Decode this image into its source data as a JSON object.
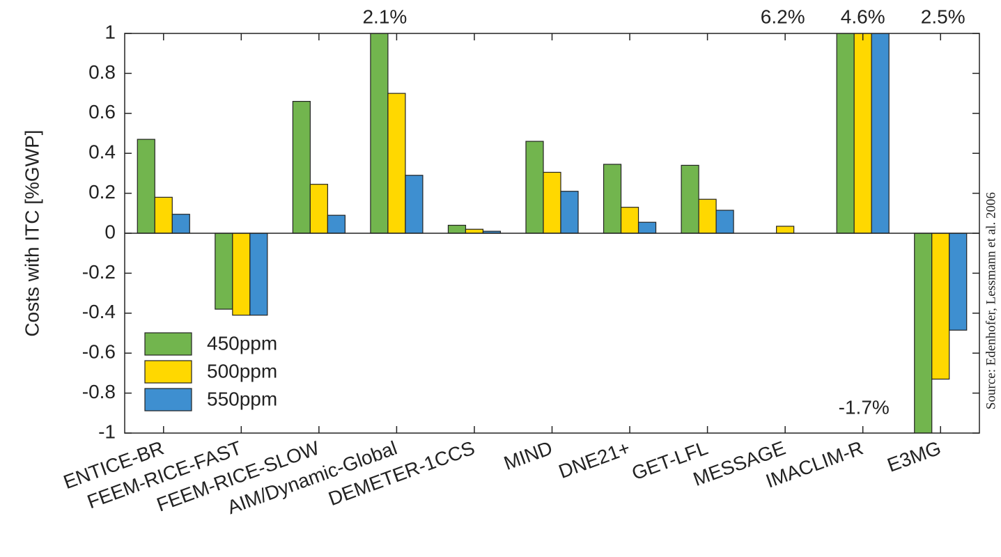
{
  "chart_data": {
    "type": "bar",
    "ylabel": "Costs with ITC [%GWP]",
    "source": "Source: Edenhofer, Lessmann et al. 2006",
    "categories": [
      "ENTICE-BR",
      "FEEM-RICE-FAST",
      "FEEM-RICE-SLOW",
      "AIM/Dynamic-Global",
      "DEMETER-1CCS",
      "MIND",
      "DNE21+",
      "GET-LFL",
      "MESSAGE",
      "IMACLIM-R",
      "E3MG"
    ],
    "series": [
      {
        "name": "450ppm",
        "color": "#72b54e",
        "values": [
          0.47,
          -0.38,
          0.66,
          2.1,
          0.04,
          0.46,
          0.345,
          0.34,
          null,
          6.2,
          -1.7
        ],
        "value_labels": [
          null,
          null,
          null,
          "2.1%",
          null,
          null,
          null,
          null,
          null,
          "6.2%",
          "-1.7%"
        ]
      },
      {
        "name": "500ppm",
        "color": "#ffd800",
        "values": [
          0.18,
          -0.41,
          0.245,
          0.7,
          0.02,
          0.305,
          0.13,
          0.17,
          0.035,
          4.6,
          -0.73
        ],
        "value_labels": [
          null,
          null,
          null,
          null,
          null,
          null,
          null,
          null,
          null,
          "4.6%",
          null
        ]
      },
      {
        "name": "550ppm",
        "color": "#3e8fd0",
        "values": [
          0.095,
          -0.41,
          0.09,
          0.29,
          0.01,
          0.21,
          0.055,
          0.115,
          null,
          2.5,
          -0.485
        ],
        "value_labels": [
          null,
          null,
          null,
          null,
          null,
          null,
          null,
          null,
          null,
          "2.5%",
          null
        ]
      }
    ],
    "ylim": [
      -1,
      1
    ],
    "yticks": [
      -1,
      -0.8,
      -0.6,
      -0.4,
      -0.2,
      0,
      0.2,
      0.4,
      0.6,
      0.8,
      1
    ],
    "legend": "lower left"
  }
}
